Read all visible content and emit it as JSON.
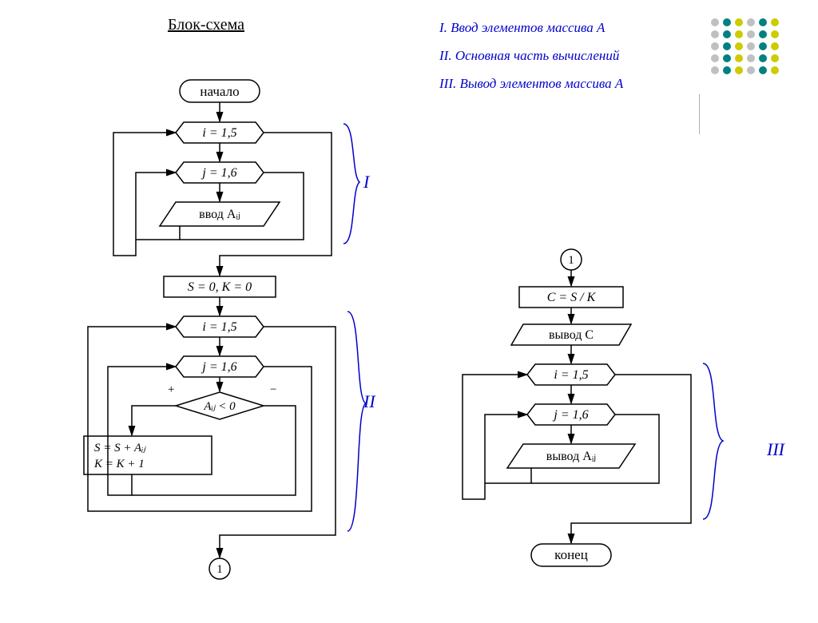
{
  "title": "Блок-схема",
  "legend": {
    "i": "I. Ввод элементов массива А",
    "ii": "II. Основная часть вычислений",
    "iii": "III. Вывод элементов массива А",
    "color": "#0000cc"
  },
  "sections": {
    "i": "I",
    "ii": "II",
    "iii": "III"
  },
  "left": {
    "start": "начало",
    "loop_i": "i = 1,5",
    "loop_j": "j = 1,6",
    "input": "ввод Aᵢⱼ",
    "init": "S = 0, K = 0",
    "loop_i2": "i = 1,5",
    "loop_j2": "j = 1,6",
    "cond": "Aᵢⱼ < 0",
    "cond_plus": "+",
    "cond_minus": "−",
    "accum1": "S = S + Aᵢⱼ",
    "accum2": "K = K + 1",
    "connector": "1"
  },
  "right": {
    "connector": "1",
    "calc": "C = S / K",
    "out_c": "вывод C",
    "loop_i": "i = 1,5",
    "loop_j": "j = 1,6",
    "out_a": "вывод Aᵢⱼ",
    "end": "конец"
  },
  "style": {
    "node_stroke": "#000000",
    "node_fill": "#ffffff",
    "line_color": "#000000",
    "brace_color": "#0000cc",
    "label_font_size": 16,
    "node_font_size": 17,
    "bg": "#ffffff"
  },
  "dots": {
    "colors": [
      "#c0c0c0",
      "#008080",
      "#cccc00",
      "#c0c0c0",
      "#008080",
      "#cccc00"
    ],
    "rows": 5,
    "cols": 6,
    "radius": 5,
    "spacing": 15
  }
}
